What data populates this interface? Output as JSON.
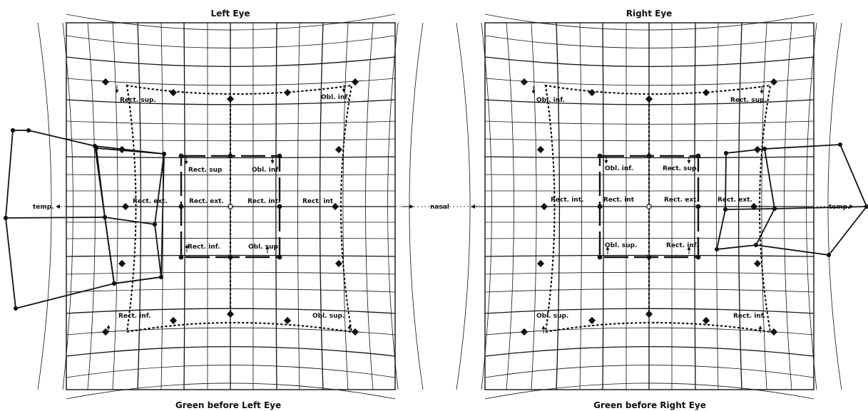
{
  "left_panel": {
    "title": "Left Eye",
    "caption": "Green before Left Eye",
    "outer_labels": {
      "top_left": "Rect. sup.",
      "top_right": "Obl. inf.",
      "bottom_left": "Rect. inf.",
      "bottom_right": "Obl. sup."
    },
    "inner_labels": {
      "upper_left": "Rect. sup",
      "upper_right": "Obl. inf",
      "middle_left_outer": "Rect. ext.",
      "middle_left_inner": "Rect. ext.",
      "middle_right_inner": "Rect. int.",
      "middle_right_outer": "Rect. int",
      "lower_left": "Rect. inf.",
      "lower_right": "Obl. sup."
    },
    "axis_left": "temp.",
    "axis_right": "nasal"
  },
  "right_panel": {
    "title": "Right Eye",
    "caption": "Green before Right Eye",
    "outer_labels": {
      "top_left": "Obl. inf.",
      "top_right": "Rect. sup.",
      "bottom_left": "Obl. sup.",
      "bottom_right": "Rect. inf."
    },
    "inner_labels": {
      "upper_left": "Obl. inf.",
      "upper_right": "Rect. sup.",
      "middle_left_outer": "Rect. int.",
      "middle_left_inner": "Rect. int",
      "middle_right_inner": "Rect. ext.",
      "middle_right_outer": "Rect. ext.",
      "lower_left": "Obl. sup.",
      "lower_right": "Rect. inf."
    },
    "axis_right": "temp."
  }
}
